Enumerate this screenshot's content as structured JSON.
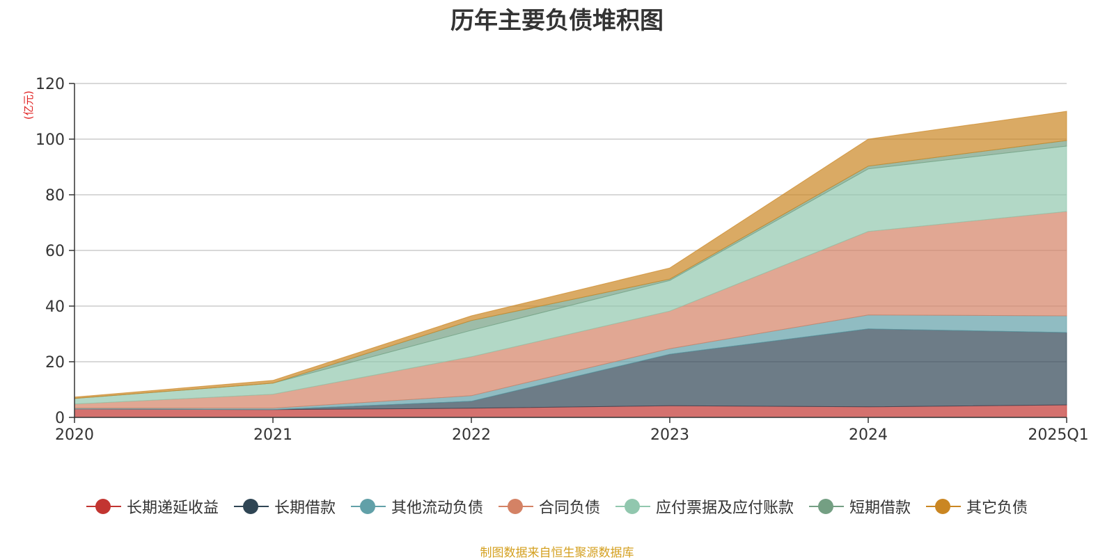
{
  "chart_data": {
    "type": "area",
    "stacked": true,
    "title": "历年主要负债堆积图",
    "ylabel": "(亿元)",
    "xlabel": "",
    "x": [
      "2020",
      "2021",
      "2022",
      "2023",
      "2024",
      "2025Q1"
    ],
    "ylim": [
      0,
      120
    ],
    "yticks": [
      0,
      20,
      40,
      60,
      80,
      100,
      120
    ],
    "grid": true,
    "legend_position": "bottom",
    "series": [
      {
        "name": "长期递延收益",
        "color": "#c23531",
        "values": [
          3.0,
          2.8,
          3.3,
          4.2,
          3.8,
          4.5
        ]
      },
      {
        "name": "长期借款",
        "color": "#2f4554",
        "values": [
          0.0,
          0.0,
          2.5,
          18.5,
          28.0,
          26.0
        ]
      },
      {
        "name": "其他流动负债",
        "color": "#61a0a8",
        "values": [
          0.3,
          0.5,
          2.0,
          2.0,
          5.0,
          6.0
        ]
      },
      {
        "name": "合同负债",
        "color": "#d48265",
        "values": [
          1.5,
          5.0,
          14.0,
          13.5,
          30.0,
          37.5
        ]
      },
      {
        "name": "应付票据及应付账款",
        "color": "#91c7ae",
        "values": [
          2.0,
          4.0,
          9.5,
          11.0,
          22.5,
          23.5
        ]
      },
      {
        "name": "短期借款",
        "color": "#749f83",
        "values": [
          0.0,
          0.0,
          3.5,
          0.5,
          1.0,
          2.0
        ]
      },
      {
        "name": "其它负债",
        "color": "#ca8622",
        "values": [
          0.5,
          1.0,
          1.7,
          4.0,
          9.7,
          10.5
        ]
      }
    ]
  },
  "source_note": "制图数据来自恒生聚源数据库"
}
